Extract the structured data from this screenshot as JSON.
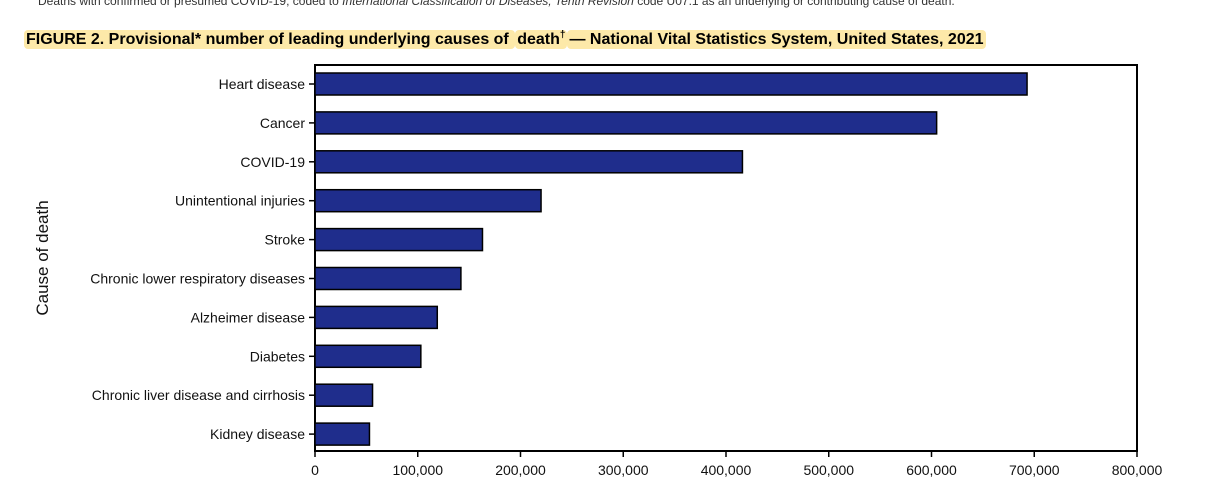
{
  "top_note": {
    "prefix": "Deaths with confirmed or presumed COVID-19, coded to ",
    "italic": "International Classification of Diseases, Tenth Revision",
    "suffix": " code U07.1 as an underlying or contributing cause of death."
  },
  "figure": {
    "title_part1": "FIGURE 2. Provisional* number of leading underlying causes of ",
    "title_death": "death",
    "title_dagger": "†",
    "title_part2": "— National Vital Statistics System, United States, 2021"
  },
  "colors": {
    "bar_fill": "#1f2d8c",
    "bar_stroke": "#000000",
    "highlight": "#fde9a9"
  },
  "chart_data": {
    "type": "bar",
    "orientation": "horizontal",
    "title": "Provisional* number of leading underlying causes of death— National Vital Statistics System, United States, 2021",
    "ylabel": "Cause of death",
    "xlabel": "",
    "categories": [
      "Heart disease",
      "Cancer",
      "COVID-19",
      "Unintentional injuries",
      "Stroke",
      "Chronic lower respiratory diseases",
      "Alzheimer disease",
      "Diabetes",
      "Chronic liver disease and cirrhosis",
      "Kidney disease"
    ],
    "values": [
      693000,
      605000,
      416000,
      220000,
      163000,
      142000,
      119000,
      103000,
      56000,
      53000
    ],
    "xlim": [
      0,
      800000
    ],
    "xticks": [
      0,
      100000,
      200000,
      300000,
      400000,
      500000,
      600000,
      700000,
      800000
    ],
    "xtick_labels": [
      "0",
      "100,000",
      "200,000",
      "300,000",
      "400,000",
      "500,000",
      "600,000",
      "700,000",
      "800,000"
    ],
    "grid": false,
    "legend": "none"
  }
}
